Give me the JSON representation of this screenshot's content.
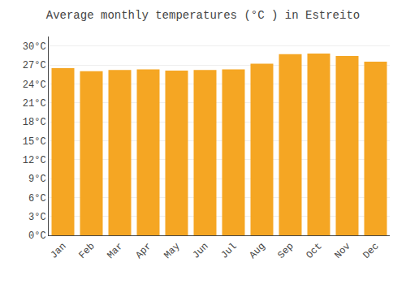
{
  "chart_data": {
    "type": "bar",
    "title": "Average monthly temperatures (°C ) in Estreito",
    "categories": [
      "Jan",
      "Feb",
      "Mar",
      "Apr",
      "May",
      "Jun",
      "Jul",
      "Aug",
      "Sep",
      "Oct",
      "Nov",
      "Dec"
    ],
    "values": [
      26.5,
      26.0,
      26.2,
      26.3,
      26.1,
      26.2,
      26.3,
      27.2,
      28.7,
      28.8,
      28.4,
      27.5
    ],
    "color": "#F5A623",
    "ylim": [
      0,
      31.5
    ],
    "yticks": [
      {
        "value": 0,
        "label": "0°C"
      },
      {
        "value": 3,
        "label": "3°C"
      },
      {
        "value": 6,
        "label": "6°C"
      },
      {
        "value": 9,
        "label": "9°C"
      },
      {
        "value": 12,
        "label": "12°C"
      },
      {
        "value": 15,
        "label": "15°C"
      },
      {
        "value": 18,
        "label": "18°C"
      },
      {
        "value": 21,
        "label": "21°C"
      },
      {
        "value": 24,
        "label": "24°C"
      },
      {
        "value": 27,
        "label": "27°C"
      },
      {
        "value": 30,
        "label": "30°C"
      }
    ],
    "grid": true
  }
}
